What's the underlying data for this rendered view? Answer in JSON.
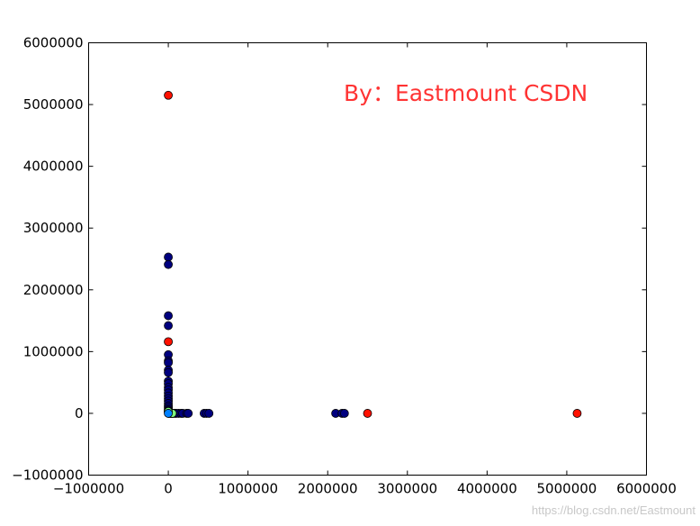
{
  "chart_data": {
    "type": "scatter",
    "xlim": [
      -1000000,
      6000000
    ],
    "ylim": [
      -1000000,
      6000000
    ],
    "xticks": [
      -1000000,
      0,
      1000000,
      2000000,
      3000000,
      4000000,
      5000000,
      6000000
    ],
    "yticks": [
      -1000000,
      0,
      1000000,
      2000000,
      3000000,
      4000000,
      5000000,
      6000000
    ],
    "xtick_labels": [
      "−1000000",
      "0",
      "1000000",
      "2000000",
      "3000000",
      "4000000",
      "5000000",
      "6000000"
    ],
    "ytick_labels": [
      "−1000000",
      "0",
      "1000000",
      "2000000",
      "3000000",
      "4000000",
      "5000000",
      "6000000"
    ],
    "grid": false,
    "annotation": "By：Eastmount CSDN",
    "annotation_color": "#ff3333",
    "watermark": "https://blog.csdn.net/Eastmount",
    "series": [
      {
        "color": "#00007f",
        "points": [
          [
            0,
            2530000
          ],
          [
            0,
            2410000
          ],
          [
            0,
            1580000
          ],
          [
            0,
            1420000
          ],
          [
            0,
            950000
          ],
          [
            0,
            850000
          ],
          [
            0,
            820000
          ],
          [
            0,
            700000
          ],
          [
            0,
            660000
          ],
          [
            0,
            520000
          ],
          [
            0,
            480000
          ],
          [
            0,
            420000
          ],
          [
            0,
            380000
          ],
          [
            0,
            330000
          ],
          [
            0,
            280000
          ],
          [
            0,
            240000
          ],
          [
            0,
            200000
          ],
          [
            0,
            160000
          ],
          [
            0,
            120000
          ],
          [
            0,
            90000
          ],
          [
            0,
            60000
          ],
          [
            0,
            40000
          ],
          [
            0,
            20000
          ],
          [
            10000,
            0
          ],
          [
            25000,
            0
          ],
          [
            40000,
            0
          ],
          [
            60000,
            0
          ],
          [
            80000,
            0
          ],
          [
            100000,
            0
          ],
          [
            130000,
            0
          ],
          [
            160000,
            0
          ],
          [
            180000,
            0
          ],
          [
            230000,
            0
          ],
          [
            250000,
            0
          ],
          [
            450000,
            0
          ],
          [
            480000,
            0
          ],
          [
            510000,
            0
          ],
          [
            2100000,
            0
          ],
          [
            2180000,
            0
          ],
          [
            2210000,
            0
          ]
        ]
      },
      {
        "color": "#ff1100",
        "points": [
          [
            0,
            5150000
          ],
          [
            0,
            1160000
          ],
          [
            2500000,
            0
          ],
          [
            5130000,
            0
          ]
        ]
      },
      {
        "color": "#7fff7f",
        "points": [
          [
            50000,
            0
          ],
          [
            0,
            30000
          ]
        ]
      },
      {
        "color": "#0080ff",
        "points": [
          [
            0,
            0
          ]
        ]
      }
    ]
  }
}
